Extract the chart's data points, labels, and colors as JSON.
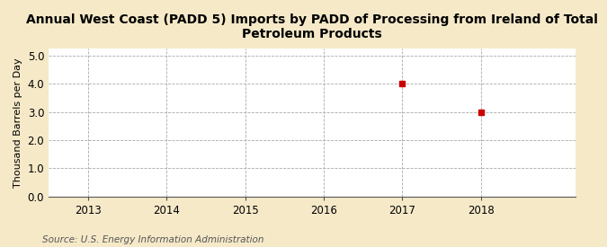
{
  "title": "Annual West Coast (PADD 5) Imports by PADD of Processing from Ireland of Total Petroleum Products",
  "ylabel": "Thousand Barrels per Day",
  "source": "Source: U.S. Energy Information Administration",
  "x_data": [
    2017,
    2018
  ],
  "y_data": [
    4.0,
    3.0
  ],
  "xlim": [
    2012.5,
    2019.2
  ],
  "ylim": [
    0.0,
    5.25
  ],
  "yticks": [
    0.0,
    1.0,
    2.0,
    3.0,
    4.0,
    5.0
  ],
  "xticks": [
    2013,
    2014,
    2015,
    2016,
    2017,
    2018
  ],
  "marker_color": "#cc0000",
  "marker_style": "s",
  "marker_size": 4,
  "plot_bg_color": "#ffffff",
  "fig_bg_color": "#f5e9c8",
  "grid_color": "#aaaaaa",
  "grid_linestyle": "--",
  "title_fontsize": 10,
  "ylabel_fontsize": 8,
  "tick_fontsize": 8.5,
  "source_fontsize": 7.5
}
